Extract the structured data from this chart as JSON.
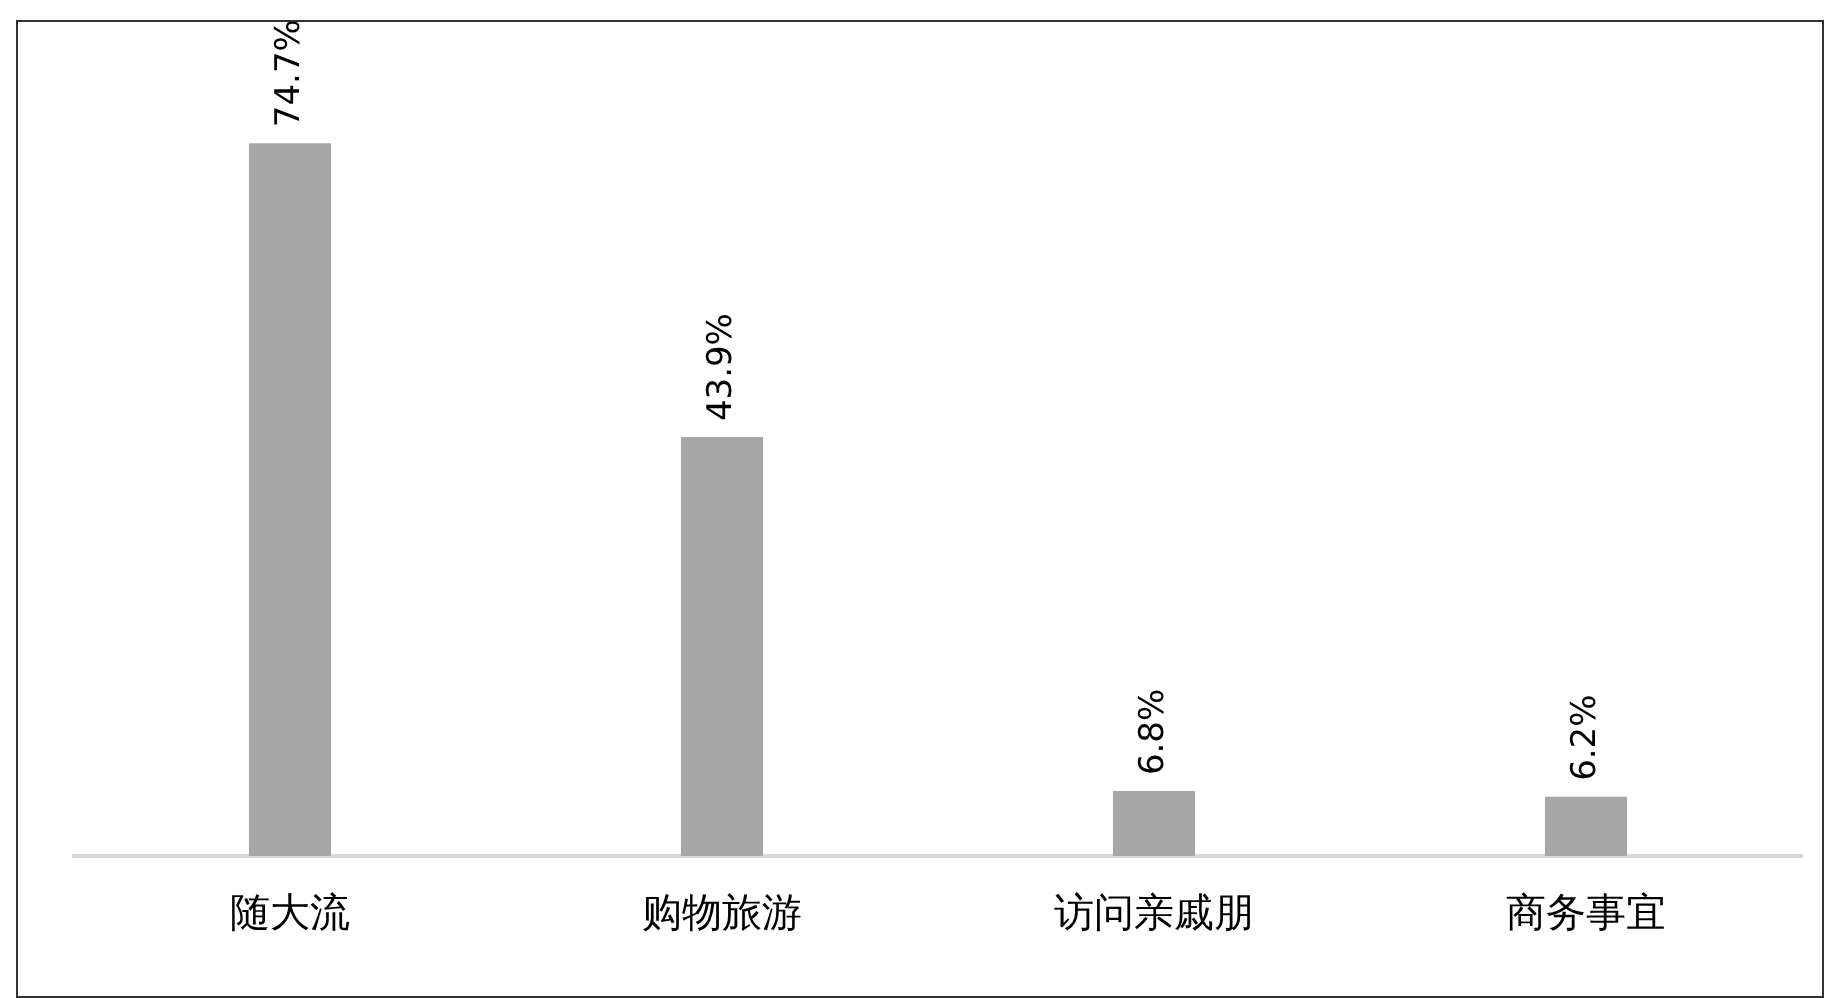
{
  "chart_data": {
    "type": "bar",
    "relative": false,
    "categories": [
      "随大流",
      "购物旅游",
      "访问亲戚朋",
      "商务事宜"
    ],
    "values": [
      74.7,
      43.9,
      6.8,
      6.2
    ],
    "value_labels": [
      "74.7%",
      "43.9%",
      "6.8%",
      "6.2%"
    ],
    "color": "#a6a6a6",
    "grid": false,
    "legend": false,
    "tick_labels": "x"
  }
}
